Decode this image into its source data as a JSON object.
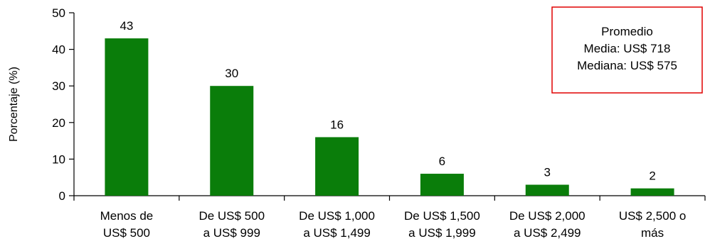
{
  "chart_data": {
    "type": "bar",
    "title": "",
    "xlabel": "",
    "ylabel": "Porcentaje (%)",
    "ylim": [
      0,
      50
    ],
    "yticks": [
      0,
      10,
      20,
      30,
      40,
      50
    ],
    "grid": false,
    "categories": [
      [
        "Menos de",
        "US$ 500"
      ],
      [
        "De US$ 500",
        "a US$ 999"
      ],
      [
        "De US$ 1,000",
        "a US$ 1,499"
      ],
      [
        "De US$ 1,500",
        "a US$ 1,999"
      ],
      [
        "De US$ 2,000",
        "a US$ 2,499"
      ],
      [
        "US$ 2,500 o",
        "más"
      ]
    ],
    "values": [
      43,
      30,
      16,
      6,
      3,
      2
    ],
    "data_labels": [
      "43",
      "30",
      "16",
      "6",
      "3",
      "2"
    ],
    "bar_color": "#0a7d0a",
    "annotation": {
      "lines": [
        "Promedio",
        "Media: US$ 718",
        "Mediana: US$ 575"
      ],
      "border_color": "#e00000",
      "placement": "top-right"
    }
  }
}
